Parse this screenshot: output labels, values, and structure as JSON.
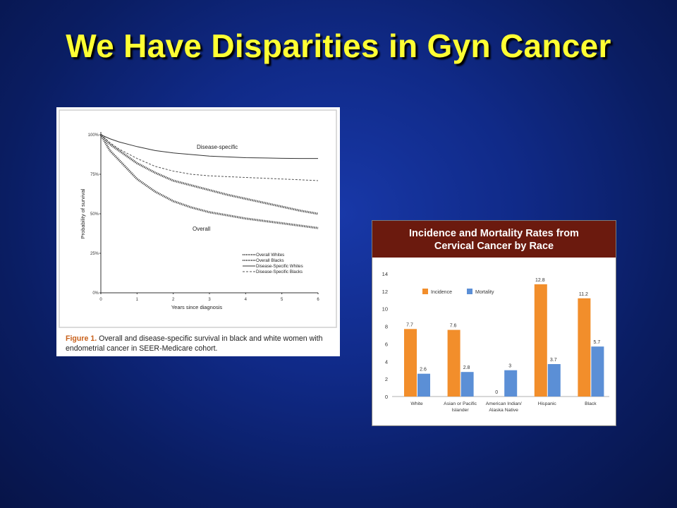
{
  "slide": {
    "title": "We Have Disparities in Gyn Cancer"
  },
  "colors": {
    "title": "#ffff33",
    "background": "#102a88",
    "header_bar": "#6b1a0e",
    "incidence": "#f28e2b",
    "mortality": "#5b8fd6"
  },
  "survival_figure": {
    "caption_label": "Figure 1.",
    "caption_text": "Overall and disease-specific survival in black and white women with endometrial cancer in SEER-Medicare cohort."
  },
  "chart_data": [
    {
      "type": "line",
      "title": "",
      "xlabel": "Years since diagnosis",
      "ylabel": "Probability of survival",
      "xlim": [
        0,
        6
      ],
      "ylim": [
        0,
        100
      ],
      "x_ticks": [
        "0",
        "1",
        "2",
        "3",
        "4",
        "5",
        "6"
      ],
      "y_ticks": [
        "0%",
        "25%",
        "50%",
        "75%",
        "100%"
      ],
      "annotations": [
        "Disease-specific",
        "Overall"
      ],
      "legend_position": "bottom-right",
      "legend": [
        "Overall Whites",
        "Overall Blacks",
        "Disease-Specific Whites",
        "Disease-Specific Blacks"
      ],
      "x": [
        0,
        0.25,
        0.5,
        1,
        1.5,
        2,
        2.5,
        3,
        3.5,
        4,
        4.5,
        5,
        5.5,
        6
      ],
      "series": [
        {
          "name": "Overall Whites",
          "style": "thick-dotted",
          "values": [
            100,
            94,
            90,
            82,
            76,
            71,
            68,
            65,
            62,
            59.5,
            57,
            54.5,
            52,
            50
          ]
        },
        {
          "name": "Overall Blacks",
          "style": "thick-dotted",
          "values": [
            100,
            90,
            84,
            72,
            64,
            58,
            54,
            51,
            49,
            47,
            45.5,
            44,
            42.5,
            41
          ]
        },
        {
          "name": "Disease-Specific Whites",
          "style": "solid",
          "values": [
            100,
            97.5,
            95.5,
            92.5,
            90,
            88.5,
            87.5,
            86.5,
            86,
            85.5,
            85.3,
            85.1,
            85,
            85
          ]
        },
        {
          "name": "Disease-Specific Blacks",
          "style": "dashed",
          "values": [
            100,
            95,
            91,
            85,
            80,
            77,
            75,
            74,
            73.5,
            73,
            72.5,
            72,
            71.5,
            71
          ]
        }
      ]
    },
    {
      "type": "bar",
      "title": "Incidence and Mortality Rates from Cervical Cancer by Race",
      "title_lines": [
        "Incidence and Mortality Rates from",
        "Cervical Cancer by Race"
      ],
      "categories": [
        "White",
        "Asian or Pacific Islander",
        "American Indian/ Alaska Native",
        "Hispanic",
        "Black"
      ],
      "category_lines": [
        [
          "White"
        ],
        [
          "Asian or Pacific",
          "Islander"
        ],
        [
          "American Indian/",
          "Alaska Native"
        ],
        [
          "Hispanic"
        ],
        [
          "Black"
        ]
      ],
      "series": [
        {
          "name": "Incidence",
          "values": [
            7.7,
            7.6,
            0,
            12.8,
            11.2
          ]
        },
        {
          "name": "Mortality",
          "values": [
            2.6,
            2.8,
            3,
            3.7,
            5.7
          ]
        }
      ],
      "data_labels": {
        "Incidence": [
          "7.7",
          "7.6",
          "0",
          "12.8",
          "11.2"
        ],
        "Mortality": [
          "2.6",
          "2.8",
          "3",
          "3.7",
          "5.7"
        ]
      },
      "ylim": [
        0,
        14
      ],
      "y_ticks": [
        "0",
        "2",
        "4",
        "6",
        "8",
        "10",
        "12",
        "14"
      ],
      "legend_position": "top-left",
      "grid": false
    }
  ]
}
